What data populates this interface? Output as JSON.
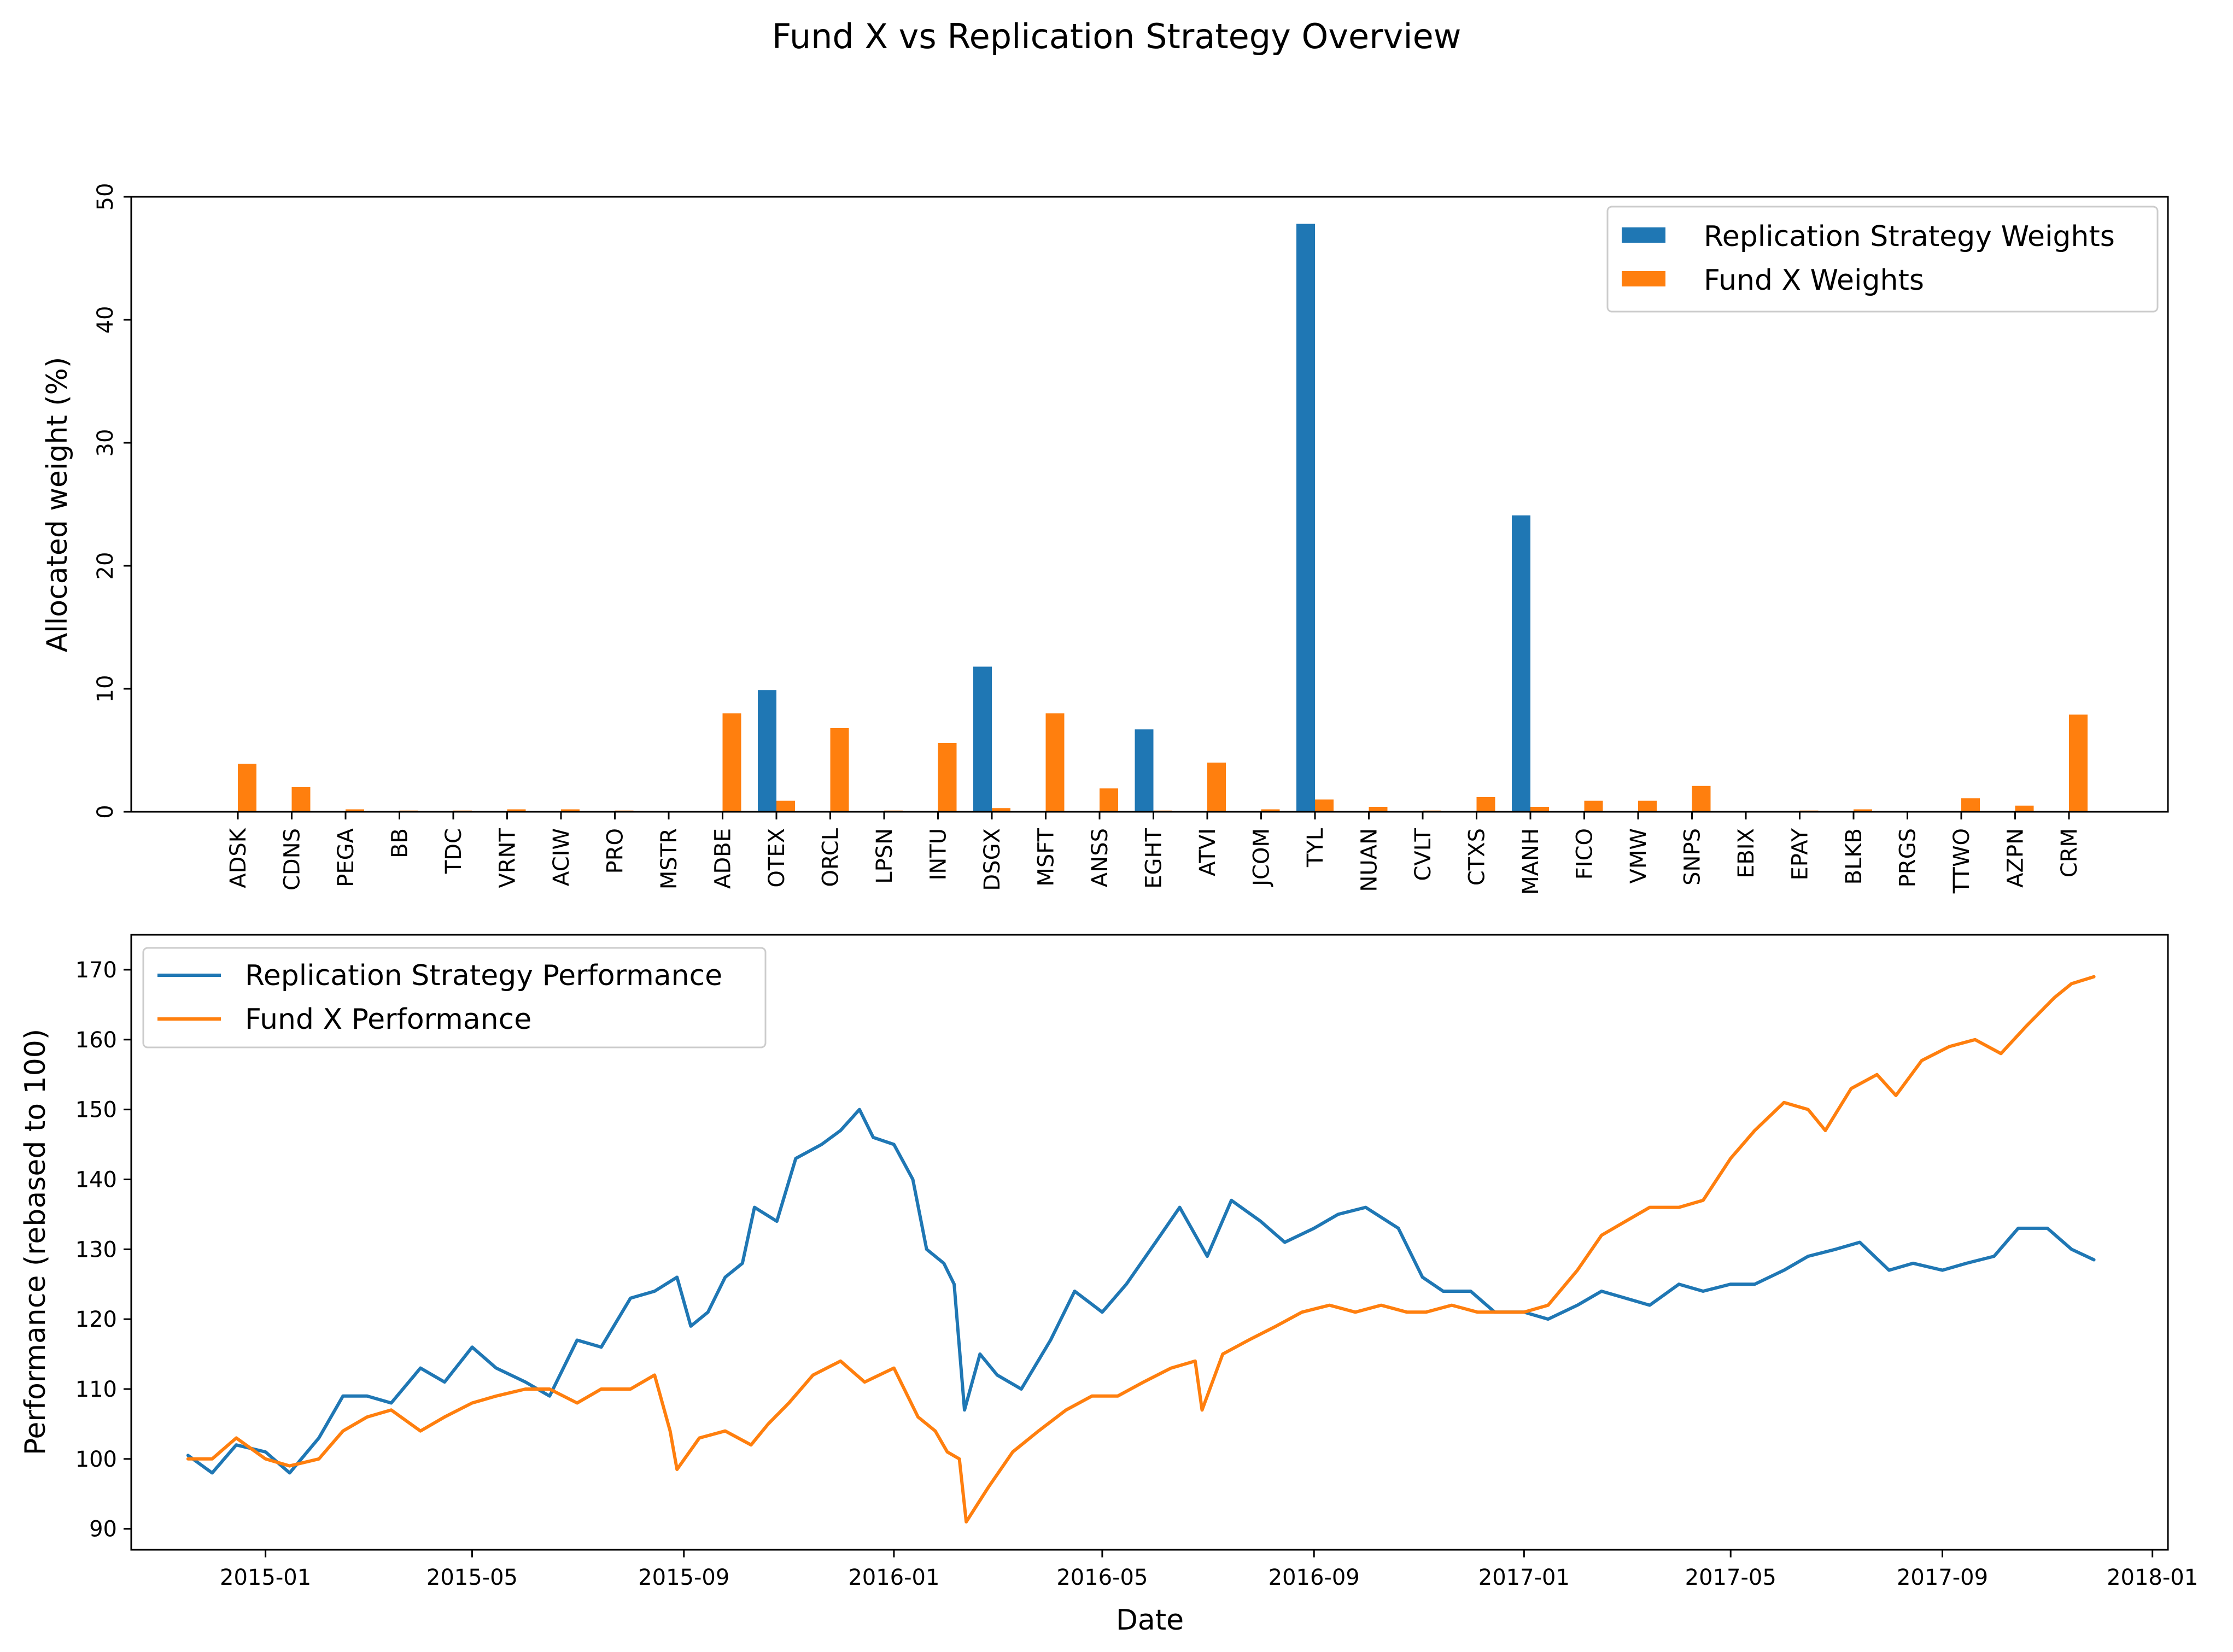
{
  "figure": {
    "title": "Fund X vs Replication Strategy Overview"
  },
  "chart_data": [
    {
      "type": "bar",
      "categories": [
        "ADSK",
        "CDNS",
        "PEGA",
        "BB",
        "TDC",
        "VRNT",
        "ACIW",
        "PRO",
        "MSTR",
        "ADBE",
        "OTEX",
        "ORCL",
        "LPSN",
        "INTU",
        "DSGX",
        "MSFT",
        "ANSS",
        "EGHT",
        "ATVI",
        "JCOM",
        "TYL",
        "NUAN",
        "CVLT",
        "CTXS",
        "MANH",
        "FICO",
        "VMW",
        "SNPS",
        "EBIX",
        "EPAY",
        "BLKB",
        "PRGS",
        "TTWO",
        "AZPN",
        "CRM"
      ],
      "series": [
        {
          "name": "Replication Strategy Weights",
          "color": "#1f77b4",
          "values": [
            0,
            0,
            0,
            0,
            0,
            0,
            0,
            0,
            0,
            0,
            9.9,
            0,
            0,
            0,
            11.8,
            0,
            0,
            6.7,
            0,
            0,
            47.8,
            0,
            0,
            0,
            24.1,
            0,
            0,
            0,
            0,
            0,
            0,
            0,
            0,
            0,
            0
          ]
        },
        {
          "name": "Fund X Weights",
          "color": "#ff7f0e",
          "values": [
            3.9,
            2.0,
            0.2,
            0.1,
            0.1,
            0.2,
            0.2,
            0.1,
            0.05,
            8.0,
            0.9,
            6.8,
            0.1,
            5.6,
            0.3,
            8.0,
            1.9,
            0.1,
            4.0,
            0.2,
            1.0,
            0.4,
            0.1,
            1.2,
            0.4,
            0.9,
            0.9,
            2.1,
            0.05,
            0.1,
            0.2,
            0.05,
            1.1,
            0.5,
            7.9
          ]
        }
      ],
      "xlabel": "",
      "ylabel": "Allocated weight (%)",
      "ylim": [
        0,
        50
      ],
      "yticks": [
        0,
        10,
        20,
        30,
        40,
        50
      ],
      "legend_position": "upper right",
      "grid": false
    },
    {
      "type": "line",
      "xlabel": "Date",
      "ylabel": "Performance (rebased to 100)",
      "xlim": [
        "2014-10-15",
        "2018-01-10"
      ],
      "ylim": [
        87,
        175
      ],
      "xticks": [
        "2015-01",
        "2015-05",
        "2015-09",
        "2016-01",
        "2016-05",
        "2016-09",
        "2017-01",
        "2017-05",
        "2017-09",
        "2018-01"
      ],
      "yticks": [
        90,
        100,
        110,
        120,
        130,
        140,
        150,
        160,
        170
      ],
      "legend_position": "upper left",
      "grid": false,
      "series": [
        {
          "name": "Replication Strategy Performance",
          "color": "#1f77b4",
          "points": [
            [
              "2014-11-17",
              100.5
            ],
            [
              "2014-12-01",
              98
            ],
            [
              "2014-12-15",
              102
            ],
            [
              "2015-01-01",
              101
            ],
            [
              "2015-01-15",
              98
            ],
            [
              "2015-02-01",
              103
            ],
            [
              "2015-02-15",
              109
            ],
            [
              "2015-03-01",
              109
            ],
            [
              "2015-03-15",
              108
            ],
            [
              "2015-04-01",
              113
            ],
            [
              "2015-04-15",
              111
            ],
            [
              "2015-05-01",
              116
            ],
            [
              "2015-05-15",
              113
            ],
            [
              "2015-06-01",
              111
            ],
            [
              "2015-06-15",
              109
            ],
            [
              "2015-07-01",
              117
            ],
            [
              "2015-07-15",
              116
            ],
            [
              "2015-08-01",
              123
            ],
            [
              "2015-08-15",
              124
            ],
            [
              "2015-08-28",
              126
            ],
            [
              "2015-09-05",
              119
            ],
            [
              "2015-09-15",
              121
            ],
            [
              "2015-09-25",
              126
            ],
            [
              "2015-10-05",
              128
            ],
            [
              "2015-10-12",
              136
            ],
            [
              "2015-10-25",
              134
            ],
            [
              "2015-11-05",
              143
            ],
            [
              "2015-11-20",
              145
            ],
            [
              "2015-12-01",
              147
            ],
            [
              "2015-12-12",
              150
            ],
            [
              "2015-12-20",
              146
            ],
            [
              "2016-01-01",
              145
            ],
            [
              "2016-01-12",
              140
            ],
            [
              "2016-01-20",
              130
            ],
            [
              "2016-01-30",
              128
            ],
            [
              "2016-02-05",
              125
            ],
            [
              "2016-02-11",
              107
            ],
            [
              "2016-02-20",
              115
            ],
            [
              "2016-03-01",
              112
            ],
            [
              "2016-03-15",
              110
            ],
            [
              "2016-04-01",
              117
            ],
            [
              "2016-04-15",
              124
            ],
            [
              "2016-05-01",
              121
            ],
            [
              "2016-05-15",
              125
            ],
            [
              "2016-06-01",
              131
            ],
            [
              "2016-06-15",
              136
            ],
            [
              "2016-07-01",
              129
            ],
            [
              "2016-07-15",
              137
            ],
            [
              "2016-08-01",
              134
            ],
            [
              "2016-08-15",
              131
            ],
            [
              "2016-09-01",
              133
            ],
            [
              "2016-09-15",
              135
            ],
            [
              "2016-10-01",
              136
            ],
            [
              "2016-10-20",
              133
            ],
            [
              "2016-11-03",
              126
            ],
            [
              "2016-11-15",
              124
            ],
            [
              "2016-12-01",
              124
            ],
            [
              "2016-12-15",
              121
            ],
            [
              "2017-01-01",
              121
            ],
            [
              "2017-01-15",
              120
            ],
            [
              "2017-02-01",
              122
            ],
            [
              "2017-02-15",
              124
            ],
            [
              "2017-03-01",
              123
            ],
            [
              "2017-03-15",
              122
            ],
            [
              "2017-04-01",
              125
            ],
            [
              "2017-04-15",
              124
            ],
            [
              "2017-05-01",
              125
            ],
            [
              "2017-05-15",
              125
            ],
            [
              "2017-06-01",
              127
            ],
            [
              "2017-06-15",
              129
            ],
            [
              "2017-07-01",
              130
            ],
            [
              "2017-07-15",
              131
            ],
            [
              "2017-08-01",
              127
            ],
            [
              "2017-08-15",
              128
            ],
            [
              "2017-09-01",
              127
            ],
            [
              "2017-09-15",
              128
            ],
            [
              "2017-10-01",
              129
            ],
            [
              "2017-10-15",
              133
            ],
            [
              "2017-11-01",
              133
            ],
            [
              "2017-11-15",
              130
            ],
            [
              "2017-11-28",
              128.5
            ]
          ]
        },
        {
          "name": "Fund X Performance",
          "color": "#ff7f0e",
          "points": [
            [
              "2014-11-17",
              100
            ],
            [
              "2014-12-01",
              100
            ],
            [
              "2014-12-15",
              103
            ],
            [
              "2015-01-01",
              100
            ],
            [
              "2015-01-15",
              99
            ],
            [
              "2015-02-01",
              100
            ],
            [
              "2015-02-15",
              104
            ],
            [
              "2015-03-01",
              106
            ],
            [
              "2015-03-15",
              107
            ],
            [
              "2015-04-01",
              104
            ],
            [
              "2015-04-15",
              106
            ],
            [
              "2015-05-01",
              108
            ],
            [
              "2015-05-15",
              109
            ],
            [
              "2015-06-01",
              110
            ],
            [
              "2015-06-15",
              110
            ],
            [
              "2015-07-01",
              108
            ],
            [
              "2015-07-15",
              110
            ],
            [
              "2015-08-01",
              110
            ],
            [
              "2015-08-15",
              112
            ],
            [
              "2015-08-24",
              104
            ],
            [
              "2015-08-28",
              98.5
            ],
            [
              "2015-09-10",
              103
            ],
            [
              "2015-09-25",
              104
            ],
            [
              "2015-10-10",
              102
            ],
            [
              "2015-10-20",
              105
            ],
            [
              "2015-11-01",
              108
            ],
            [
              "2015-11-15",
              112
            ],
            [
              "2015-12-01",
              114
            ],
            [
              "2015-12-15",
              111
            ],
            [
              "2016-01-01",
              113
            ],
            [
              "2016-01-15",
              106
            ],
            [
              "2016-01-25",
              104
            ],
            [
              "2016-02-01",
              101
            ],
            [
              "2016-02-08",
              100
            ],
            [
              "2016-02-12",
              91
            ],
            [
              "2016-02-25",
              96
            ],
            [
              "2016-03-10",
              101
            ],
            [
              "2016-03-25",
              104
            ],
            [
              "2016-04-10",
              107
            ],
            [
              "2016-04-25",
              109
            ],
            [
              "2016-05-10",
              109
            ],
            [
              "2016-05-25",
              111
            ],
            [
              "2016-06-10",
              113
            ],
            [
              "2016-06-24",
              114
            ],
            [
              "2016-06-28",
              107
            ],
            [
              "2016-07-10",
              115
            ],
            [
              "2016-07-25",
              117
            ],
            [
              "2016-08-10",
              119
            ],
            [
              "2016-08-25",
              121
            ],
            [
              "2016-09-10",
              122
            ],
            [
              "2016-09-25",
              121
            ],
            [
              "2016-10-10",
              122
            ],
            [
              "2016-10-25",
              121
            ],
            [
              "2016-11-05",
              121
            ],
            [
              "2016-11-20",
              122
            ],
            [
              "2016-12-05",
              121
            ],
            [
              "2016-12-20",
              121
            ],
            [
              "2017-01-01",
              121
            ],
            [
              "2017-01-15",
              122
            ],
            [
              "2017-02-01",
              127
            ],
            [
              "2017-02-15",
              132
            ],
            [
              "2017-03-01",
              134
            ],
            [
              "2017-03-15",
              136
            ],
            [
              "2017-04-01",
              136
            ],
            [
              "2017-04-15",
              137
            ],
            [
              "2017-05-01",
              143
            ],
            [
              "2017-05-15",
              147
            ],
            [
              "2017-06-01",
              151
            ],
            [
              "2017-06-15",
              150
            ],
            [
              "2017-06-25",
              147
            ],
            [
              "2017-07-10",
              153
            ],
            [
              "2017-07-25",
              155
            ],
            [
              "2017-08-05",
              152
            ],
            [
              "2017-08-20",
              157
            ],
            [
              "2017-09-05",
              159
            ],
            [
              "2017-09-20",
              160
            ],
            [
              "2017-10-05",
              158
            ],
            [
              "2017-10-20",
              162
            ],
            [
              "2017-11-05",
              166
            ],
            [
              "2017-11-15",
              168
            ],
            [
              "2017-11-28",
              169
            ]
          ]
        }
      ]
    }
  ]
}
